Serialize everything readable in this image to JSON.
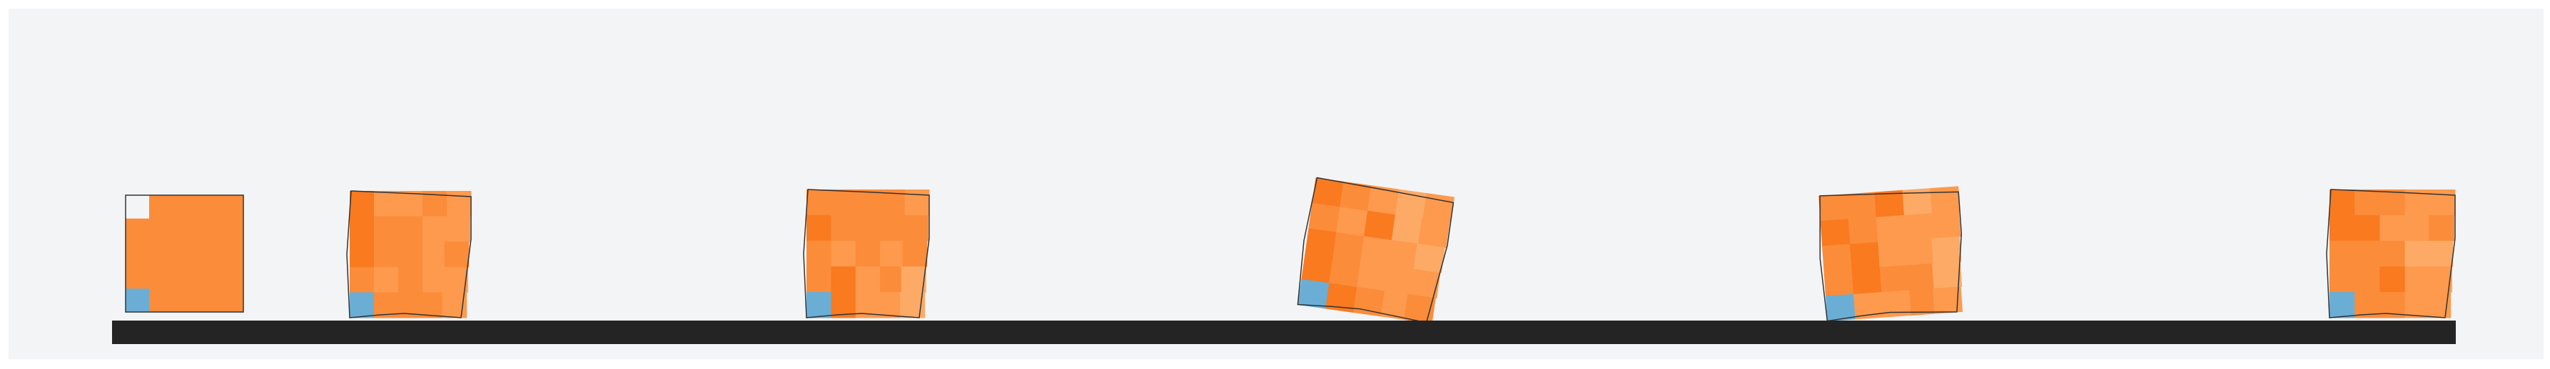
{
  "scene": {
    "background": "#f3f4f6",
    "ground_color": "#242424",
    "outline_color": "#333333",
    "foot_color": "#6aaed6",
    "body_palette": [
      "#f97a1f",
      "#fb8c3a",
      "#fd9a4e",
      "#fdaa66"
    ]
  },
  "frames": [
    {
      "name": "frame-1",
      "shape": "square",
      "tilt": 0
    },
    {
      "name": "frame-2",
      "shape": "trapezoid",
      "tilt": 0
    },
    {
      "name": "frame-3",
      "shape": "trapezoid",
      "tilt": 0
    },
    {
      "name": "frame-4",
      "shape": "trapezoid",
      "tilt": 8
    },
    {
      "name": "frame-5",
      "shape": "trapezoid",
      "tilt": -4
    },
    {
      "name": "frame-6",
      "shape": "trapezoid",
      "tilt": 0
    }
  ]
}
